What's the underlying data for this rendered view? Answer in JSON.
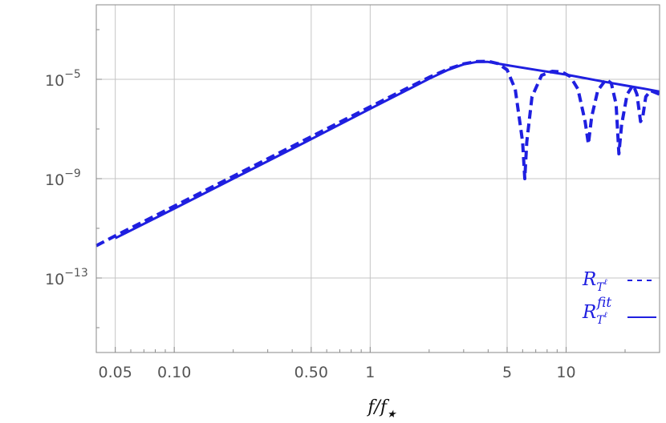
{
  "chart_data": {
    "type": "line",
    "title": "",
    "xlabel": "f/f★",
    "ylabel": "",
    "x_scale": "log",
    "y_scale": "log",
    "xlim": [
      0.04,
      30
    ],
    "ylim": [
      1e-16,
      0.01
    ],
    "grid": true,
    "legend_position": "bottom-right",
    "x_ticks": [
      {
        "value": 0.05,
        "label": "0.05"
      },
      {
        "value": 0.1,
        "label": "0.10"
      },
      {
        "value": 0.5,
        "label": "0.50"
      },
      {
        "value": 1,
        "label": "1"
      },
      {
        "value": 5,
        "label": "5"
      },
      {
        "value": 10,
        "label": "10"
      }
    ],
    "x_minor_ticks": [
      0.06,
      0.07,
      0.08,
      0.09,
      0.2,
      0.3,
      0.4,
      0.6,
      0.7,
      0.8,
      0.9,
      2,
      3,
      4,
      6,
      7,
      8,
      9,
      20
    ],
    "y_ticks": [
      {
        "value": 1e-05,
        "base": "10",
        "exp": "−5"
      },
      {
        "value": 1e-09,
        "base": "10",
        "exp": "−9"
      },
      {
        "value": 1e-13,
        "base": "10",
        "exp": "−13"
      }
    ],
    "y_minor_ticks": [
      0.001,
      1e-07,
      1e-11,
      1e-15
    ],
    "series": [
      {
        "name": "R_T^ℓ",
        "style": "dashed",
        "color": "#1f1fe0",
        "points": [
          [
            0.04,
            2e-12
          ],
          [
            0.05,
            5e-12
          ],
          [
            0.1,
            7.8e-11
          ],
          [
            0.2,
            1.25e-09
          ],
          [
            0.5,
            4.9e-08
          ],
          [
            1,
            7.8e-07
          ],
          [
            1.5,
            3.9e-06
          ],
          [
            2,
            1.2e-05
          ],
          [
            2.5,
            2.6e-05
          ],
          [
            3,
            4.2e-05
          ],
          [
            3.5,
            5.2e-05
          ],
          [
            4,
            5.3e-05
          ],
          [
            4.5,
            4.3e-05
          ],
          [
            5,
            2.4e-05
          ],
          [
            5.5,
            4e-06
          ],
          [
            6,
            3e-08
          ],
          [
            6.15,
            1e-09
          ],
          [
            6.3,
            3e-08
          ],
          [
            6.7,
            2e-06
          ],
          [
            7.5,
            1.45e-05
          ],
          [
            8.5,
            2.1e-05
          ],
          [
            9.5,
            2e-05
          ],
          [
            10.5,
            1.3e-05
          ],
          [
            11.5,
            4e-06
          ],
          [
            12.5,
            2e-07
          ],
          [
            13.0,
            2.5e-08
          ],
          [
            13.5,
            3e-07
          ],
          [
            14.5,
            3.5e-06
          ],
          [
            16,
            1e-05
          ],
          [
            17,
            7e-06
          ],
          [
            18,
            1e-06
          ],
          [
            18.6,
            1e-08
          ],
          [
            19.2,
            1.5e-07
          ],
          [
            20.5,
            2.5e-06
          ],
          [
            22,
            6e-06
          ],
          [
            23,
            2.5e-06
          ],
          [
            24,
            2e-07
          ],
          [
            24.6,
            3e-07
          ],
          [
            25.5,
            2e-06
          ],
          [
            27,
            3.5e-06
          ],
          [
            30,
            2.5e-06
          ]
        ]
      },
      {
        "name": "R_T^ℓ fit",
        "style": "solid",
        "color": "#1f1fe0",
        "points": [
          [
            0.05,
            4e-12
          ],
          [
            0.1,
            6.2e-11
          ],
          [
            0.2,
            1e-09
          ],
          [
            0.5,
            3.9e-08
          ],
          [
            1,
            6.5e-07
          ],
          [
            1.5,
            3.3e-06
          ],
          [
            2,
            1.05e-05
          ],
          [
            2.5,
            2.4e-05
          ],
          [
            3,
            4e-05
          ],
          [
            3.5,
            5e-05
          ],
          [
            4,
            5e-05
          ],
          [
            5,
            3.7e-05
          ],
          [
            7,
            2.4e-05
          ],
          [
            10,
            1.55e-05
          ],
          [
            15,
            8.5e-06
          ],
          [
            20,
            5.7e-06
          ],
          [
            25,
            4.2e-06
          ],
          [
            30,
            3.2e-06
          ]
        ]
      }
    ]
  },
  "legend": {
    "items": [
      {
        "base": "R",
        "sub": "T",
        "sup_sub": "ℓ",
        "sup": ""
      },
      {
        "base": "R",
        "sub": "T",
        "sup_sub": "ℓ",
        "sup": "fit"
      }
    ]
  }
}
